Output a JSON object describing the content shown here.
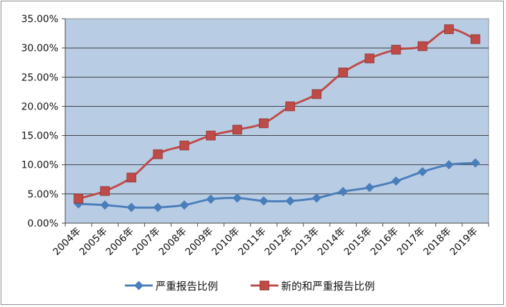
{
  "chart_data": {
    "type": "line",
    "categories": [
      "2004年",
      "2005年",
      "2006年",
      "2007年",
      "2008年",
      "2009年",
      "2010年",
      "2011年",
      "2012年",
      "2013年",
      "2014年",
      "2015年",
      "2016年",
      "2017年",
      "2018年",
      "2019年"
    ],
    "y_ticks": [
      "0.00%",
      "5.00%",
      "10.00%",
      "15.00%",
      "20.00%",
      "25.00%",
      "30.00%",
      "35.00%"
    ],
    "ylim": [
      0,
      35
    ],
    "y_unit": "%",
    "grid": true,
    "plot_background": "#b8cce4",
    "legend_position": "bottom",
    "series": [
      {
        "name": "严重报告比例",
        "color": "#4a7ebb",
        "marker": "diamond",
        "values": [
          3.3,
          3.1,
          2.7,
          2.7,
          3.1,
          4.1,
          4.3,
          3.8,
          3.8,
          4.3,
          5.4,
          6.1,
          7.2,
          8.8,
          10.0,
          10.3
        ]
      },
      {
        "name": "新的和严重报告比例",
        "color": "#be4b48",
        "marker": "square",
        "values": [
          4.2,
          5.5,
          7.8,
          11.8,
          13.3,
          15.0,
          16.0,
          17.1,
          20.0,
          22.1,
          25.8,
          28.2,
          29.7,
          30.3,
          33.2,
          31.5
        ]
      }
    ]
  }
}
